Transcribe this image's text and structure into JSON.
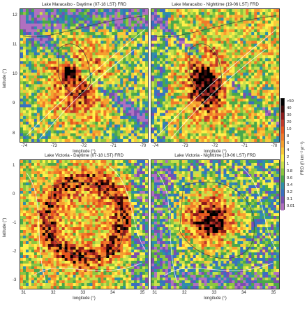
{
  "figure": {
    "panels": [
      {
        "id": "maracaibo-day",
        "title": "Lake Maracaibo - Daytime (07-18 LST) FRD",
        "xlabel": "longitude (°)",
        "ylabel": "latitude (°)",
        "xticks": [
          "-74",
          "-73",
          "-72",
          "-71",
          "-70"
        ],
        "yticks": [
          "12",
          "11",
          "10",
          "9",
          "8"
        ],
        "show_ylabel": true
      },
      {
        "id": "maracaibo-night",
        "title": "Lake Maracaibo - Nighttime (19-06 LST) FRD",
        "xlabel": "longitude (°)",
        "ylabel": "",
        "xticks": [
          "-74",
          "-73",
          "-72",
          "-71",
          "-70"
        ],
        "yticks": [],
        "show_ylabel": false
      },
      {
        "id": "victoria-day",
        "title": "Lake Victoria - Daytime (07-18 LST) FRD",
        "xlabel": "longitude (°)",
        "ylabel": "latitude (°)",
        "xticks": [
          "31",
          "32",
          "33",
          "34",
          "35"
        ],
        "yticks": [
          "1",
          "0",
          "-1",
          "-2",
          "-3"
        ],
        "show_ylabel": true
      },
      {
        "id": "victoria-night",
        "title": "Lake Victoria - Nighttime (19-06 LST) FRD",
        "xlabel": "longitude (°)",
        "ylabel": "",
        "xticks": [
          "31",
          "32",
          "33",
          "34",
          "35"
        ],
        "yticks": [],
        "show_ylabel": false
      }
    ],
    "colorbar": {
      "title": "FRD (fl km⁻² yr⁻¹)",
      "labels": [
        ">50",
        "40",
        "30",
        "20",
        "10",
        "8",
        "6",
        "4",
        "2",
        "1",
        "0.8",
        "0.6",
        "0.4",
        "0.2",
        "0.1",
        "0.01"
      ],
      "colors": [
        "#000000",
        "#3a0a0a",
        "#8b1a1a",
        "#c0392b",
        "#e8571e",
        "#f07a2a",
        "#f5a030",
        "#f9c93a",
        "#fff04a",
        "#c8e04a",
        "#8cc63f",
        "#4aa84a",
        "#2f8fa8",
        "#3a6fc0",
        "#7a4fb0",
        "#b070c0"
      ]
    }
  }
}
